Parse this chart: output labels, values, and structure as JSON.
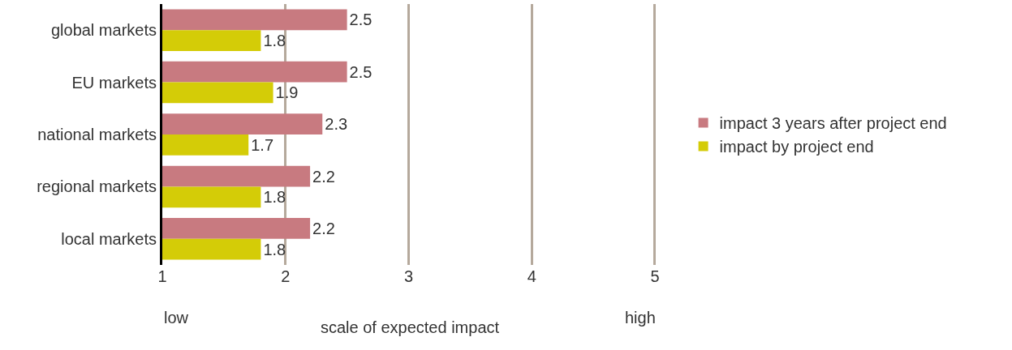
{
  "chart_data": {
    "type": "bar",
    "orientation": "horizontal",
    "xlabel": "scale of expected impact",
    "categories": [
      "global markets",
      "EU markets",
      "national markets",
      "regional markets",
      "local markets"
    ],
    "series": [
      {
        "name": "impact 3 years after project end",
        "color": "#c87a80",
        "values": [
          2.5,
          2.5,
          2.3,
          2.2,
          2.2
        ]
      },
      {
        "name": "impact by project end",
        "color": "#d4cc07",
        "values": [
          1.8,
          1.9,
          1.7,
          1.8,
          1.8
        ]
      }
    ],
    "xlim": [
      1,
      5.02
    ],
    "xticks": [
      1,
      2,
      3,
      4,
      5
    ],
    "grid": "x",
    "data_labels": true,
    "legend": "right",
    "annotations": [
      "low",
      "high"
    ]
  }
}
